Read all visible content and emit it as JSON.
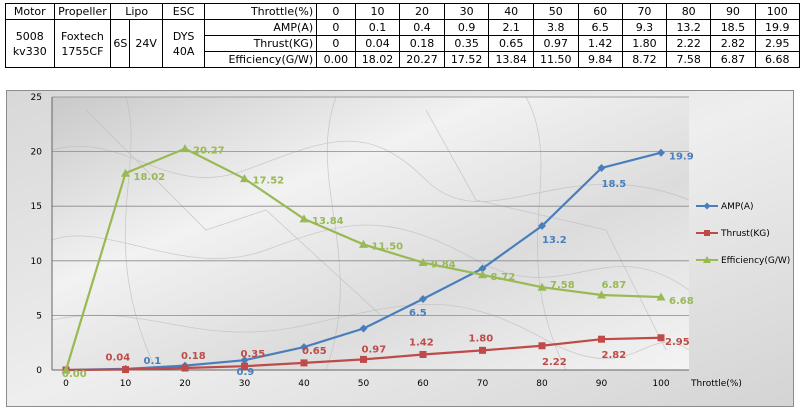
{
  "spec_table": {
    "headers": [
      "Motor",
      "Propeller",
      "Lipo",
      "ESC"
    ],
    "motor": [
      "5008",
      "kv330"
    ],
    "propeller": [
      "Foxtech",
      "1755CF"
    ],
    "lipo_cells": "6S",
    "lipo_voltage": "24V",
    "esc": [
      "DYS",
      "40A"
    ],
    "throttle_label": "Throttle(%)",
    "throttle": [
      "0",
      "10",
      "20",
      "30",
      "40",
      "50",
      "60",
      "70",
      "80",
      "90",
      "100"
    ],
    "rows": [
      {
        "label": "AMP(A)",
        "values": [
          "0",
          "0.1",
          "0.4",
          "0.9",
          "2.1",
          "3.8",
          "6.5",
          "9.3",
          "13.2",
          "18.5",
          "19.9"
        ]
      },
      {
        "label": "Thrust(KG)",
        "values": [
          "0",
          "0.04",
          "0.18",
          "0.35",
          "0.65",
          "0.97",
          "1.42",
          "1.80",
          "2.22",
          "2.82",
          "2.95"
        ]
      },
      {
        "label": "Efficiency(G/W)",
        "values": [
          "0.00",
          "18.02",
          "20.27",
          "17.52",
          "13.84",
          "11.50",
          "9.84",
          "8.72",
          "7.58",
          "6.87",
          "6.68"
        ]
      }
    ]
  },
  "chart_data": {
    "type": "line",
    "x": [
      0,
      10,
      20,
      30,
      40,
      50,
      60,
      70,
      80,
      90,
      100
    ],
    "xticks": [
      "0",
      "10",
      "20",
      "30",
      "40",
      "50",
      "60",
      "70",
      "80",
      "90",
      "100"
    ],
    "yticks": [
      "0",
      "5",
      "10",
      "15",
      "20",
      "25"
    ],
    "ylim": [
      0,
      25
    ],
    "xlabel": "Throttle(%)",
    "ylabel": "",
    "title": "",
    "grid": true,
    "legend_position": "right",
    "series": [
      {
        "name": "AMP(A)",
        "color": "#4a7ebb",
        "marker": "diamond",
        "values": [
          0,
          0.1,
          0.4,
          0.9,
          2.1,
          3.8,
          6.5,
          9.3,
          13.2,
          18.5,
          19.9
        ],
        "labels": [
          "",
          "0.1",
          "",
          "0.9",
          "",
          "",
          "6.5",
          "",
          "13.2",
          "18.5",
          "19.9"
        ]
      },
      {
        "name": "Thrust(KG)",
        "color": "#be4b48",
        "marker": "square",
        "values": [
          0,
          0.04,
          0.18,
          0.35,
          0.65,
          0.97,
          1.42,
          1.8,
          2.22,
          2.82,
          2.95
        ],
        "labels": [
          "",
          "0.04",
          "0.18",
          "0.35",
          "0.65",
          "0.97",
          "1.42",
          "1.80",
          "2.22",
          "2.82",
          "2.95"
        ]
      },
      {
        "name": "Efficiency(G/W)",
        "color": "#98b954",
        "marker": "triangle",
        "values": [
          0,
          18.02,
          20.27,
          17.52,
          13.84,
          11.5,
          9.84,
          8.72,
          7.58,
          6.87,
          6.68
        ],
        "labels": [
          "0.00",
          "18.02",
          "20.27",
          "17.52",
          "13.84",
          "11.50",
          "9.84",
          "8.72",
          "7.58",
          "6.87",
          "6.68"
        ]
      }
    ]
  }
}
